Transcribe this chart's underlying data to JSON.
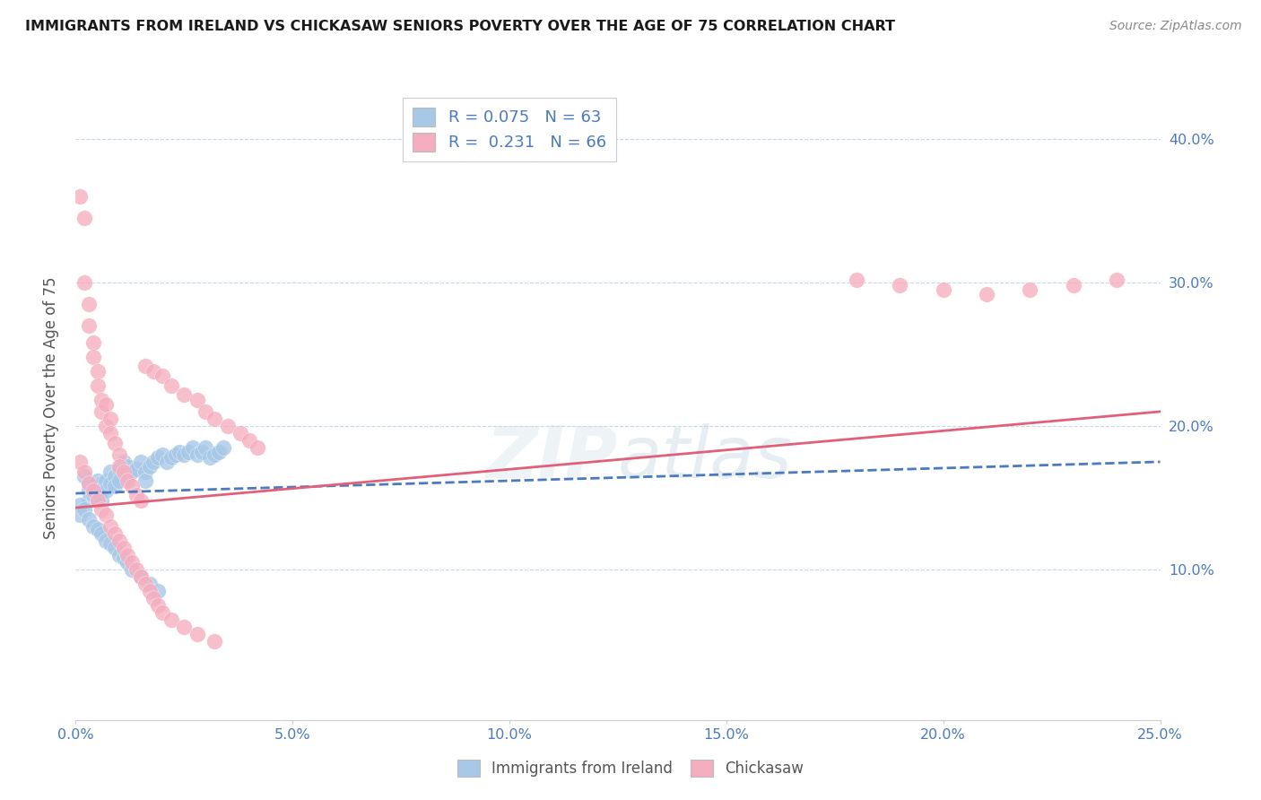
{
  "title": "IMMIGRANTS FROM IRELAND VS CHICKASAW SENIORS POVERTY OVER THE AGE OF 75 CORRELATION CHART",
  "source": "Source: ZipAtlas.com",
  "ylabel": "Seniors Poverty Over the Age of 75",
  "xlim": [
    0.0,
    0.25
  ],
  "ylim": [
    -0.005,
    0.43
  ],
  "xticks": [
    0.0,
    0.05,
    0.1,
    0.15,
    0.2,
    0.25
  ],
  "xticklabels": [
    "0.0%",
    "5.0%",
    "10.0%",
    "15.0%",
    "20.0%",
    "25.0%"
  ],
  "yticks": [
    0.1,
    0.2,
    0.3,
    0.4
  ],
  "yticklabels": [
    "10.0%",
    "20.0%",
    "30.0%",
    "40.0%"
  ],
  "blue_color": "#a8c8e8",
  "pink_color": "#f5aec0",
  "blue_line_color": "#4a7abf",
  "pink_line_color": "#e0607a",
  "R_blue": 0.075,
  "N_blue": 63,
  "R_pink": 0.231,
  "N_pink": 66,
  "legend_label_blue": "Immigrants from Ireland",
  "legend_label_pink": "Chickasaw",
  "blue_scatter_x": [
    0.002,
    0.003,
    0.003,
    0.003,
    0.004,
    0.004,
    0.005,
    0.005,
    0.005,
    0.006,
    0.006,
    0.006,
    0.007,
    0.007,
    0.008,
    0.008,
    0.009,
    0.009,
    0.01,
    0.01,
    0.011,
    0.012,
    0.012,
    0.013,
    0.014,
    0.015,
    0.016,
    0.016,
    0.017,
    0.018,
    0.019,
    0.02,
    0.021,
    0.022,
    0.023,
    0.024,
    0.025,
    0.026,
    0.027,
    0.028,
    0.029,
    0.03,
    0.031,
    0.032,
    0.033,
    0.034,
    0.001,
    0.001,
    0.002,
    0.003,
    0.004,
    0.005,
    0.006,
    0.007,
    0.008,
    0.009,
    0.01,
    0.011,
    0.012,
    0.013,
    0.015,
    0.017,
    0.019
  ],
  "blue_scatter_y": [
    0.165,
    0.16,
    0.155,
    0.148,
    0.158,
    0.152,
    0.162,
    0.155,
    0.148,
    0.16,
    0.155,
    0.148,
    0.162,
    0.155,
    0.168,
    0.16,
    0.165,
    0.158,
    0.17,
    0.162,
    0.175,
    0.172,
    0.165,
    0.168,
    0.17,
    0.175,
    0.168,
    0.162,
    0.172,
    0.175,
    0.178,
    0.18,
    0.175,
    0.178,
    0.18,
    0.182,
    0.18,
    0.182,
    0.185,
    0.18,
    0.182,
    0.185,
    0.178,
    0.18,
    0.182,
    0.185,
    0.145,
    0.138,
    0.142,
    0.135,
    0.13,
    0.128,
    0.125,
    0.12,
    0.118,
    0.115,
    0.11,
    0.108,
    0.105,
    0.1,
    0.095,
    0.09,
    0.085
  ],
  "pink_scatter_x": [
    0.001,
    0.002,
    0.002,
    0.003,
    0.003,
    0.004,
    0.004,
    0.005,
    0.005,
    0.006,
    0.006,
    0.007,
    0.007,
    0.008,
    0.008,
    0.009,
    0.01,
    0.01,
    0.011,
    0.012,
    0.013,
    0.014,
    0.015,
    0.016,
    0.018,
    0.02,
    0.022,
    0.025,
    0.028,
    0.03,
    0.032,
    0.035,
    0.038,
    0.04,
    0.042,
    0.001,
    0.002,
    0.003,
    0.004,
    0.005,
    0.006,
    0.007,
    0.008,
    0.009,
    0.01,
    0.011,
    0.012,
    0.013,
    0.014,
    0.015,
    0.016,
    0.017,
    0.018,
    0.019,
    0.02,
    0.022,
    0.025,
    0.028,
    0.032,
    0.18,
    0.19,
    0.2,
    0.21,
    0.22,
    0.23,
    0.24
  ],
  "pink_scatter_y": [
    0.36,
    0.345,
    0.3,
    0.285,
    0.27,
    0.258,
    0.248,
    0.238,
    0.228,
    0.218,
    0.21,
    0.2,
    0.215,
    0.205,
    0.195,
    0.188,
    0.18,
    0.172,
    0.168,
    0.162,
    0.158,
    0.152,
    0.148,
    0.242,
    0.238,
    0.235,
    0.228,
    0.222,
    0.218,
    0.21,
    0.205,
    0.2,
    0.195,
    0.19,
    0.185,
    0.175,
    0.168,
    0.16,
    0.155,
    0.148,
    0.142,
    0.138,
    0.13,
    0.125,
    0.12,
    0.115,
    0.11,
    0.105,
    0.1,
    0.095,
    0.09,
    0.085,
    0.08,
    0.075,
    0.07,
    0.065,
    0.06,
    0.055,
    0.05,
    0.302,
    0.298,
    0.295,
    0.292,
    0.295,
    0.298,
    0.302
  ]
}
